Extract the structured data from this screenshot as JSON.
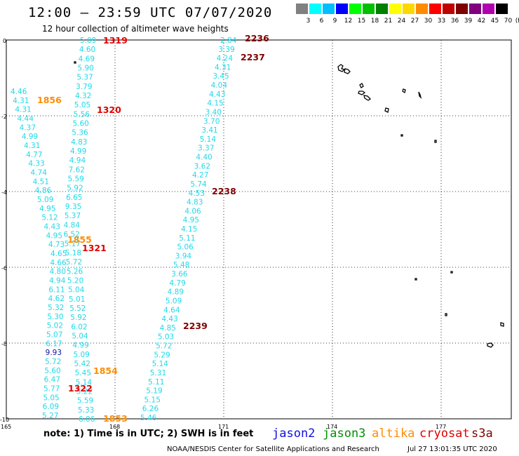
{
  "title": "12:00 – 23:59 UTC 07/07/2020",
  "subtitle": "12 hour collection of altimeter wave heights",
  "colorbar": {
    "unit": "(ft)",
    "labels": [
      "3",
      "6",
      "9",
      "12",
      "15",
      "18",
      "21",
      "24",
      "27",
      "30",
      "33",
      "36",
      "39",
      "42",
      "45",
      "70"
    ],
    "colors": [
      "#808080",
      "#00ffff",
      "#00bfff",
      "#0000ff",
      "#00ff00",
      "#00c000",
      "#008000",
      "#ffff00",
      "#ffd700",
      "#ff8c00",
      "#ff0000",
      "#c00000",
      "#800000",
      "#800080",
      "#b000b0",
      "#000000"
    ]
  },
  "axes": {
    "x_ticks": [
      "165",
      "168",
      "171",
      "174",
      "177"
    ],
    "y_ticks": [
      "0",
      "-2",
      "-4",
      "-6",
      "-8",
      "-10"
    ]
  },
  "tracks": [
    {
      "values": [
        "5.09",
        "4.60",
        "4.69",
        "5.90",
        "5.37",
        "3.79",
        "4.32",
        "5.05",
        "5.56",
        "5.60",
        "5.36",
        "4.83",
        "4.99",
        "4.94",
        "7.62",
        "5.59",
        "5.92",
        "6.65",
        "9.35",
        "5.37",
        "4.84",
        "6.52",
        "5.17",
        "5.18",
        "5.72",
        "5.26",
        "5.20",
        "5.04",
        "5.01",
        "5.52",
        "5.92",
        "6.02",
        "5.04",
        "4.99",
        "5.09",
        "5.42",
        "5.45",
        "5.14",
        "5.22",
        "5.59",
        "5.33",
        "6.06"
      ]
    },
    {
      "values": [
        "4.46",
        "4.31",
        "4.31",
        "4.44",
        "4.37",
        "4.99",
        "4.31",
        "4.77",
        "4.33",
        "4.74",
        "4.51",
        "4.86",
        "5.09",
        "4.95",
        "5.12",
        "4.43",
        "4.95",
        "4.73",
        "4.65",
        "4.66",
        "4.80",
        "4.94",
        "6.11",
        "4.62",
        "5.32",
        "5.30",
        "5.02",
        "5.07",
        "6.17",
        "9.93",
        "5.72",
        "5.60",
        "6.47",
        "5.77",
        "5.05",
        "6.09",
        "5.27"
      ]
    },
    {
      "values": [
        "2.84",
        "3.39",
        "4.24",
        "4.31",
        "3.45",
        "4.04",
        "4.43",
        "4.15",
        "3.40",
        "3.70",
        "3.41",
        "5.14",
        "3.37",
        "4.40",
        "3.62",
        "4.27",
        "5.74",
        "4.53",
        "4.83",
        "4.06",
        "4.95",
        "4.15",
        "5.11",
        "5.06",
        "3.94",
        "5.48",
        "3.66",
        "4.79",
        "4.89",
        "5.09",
        "4.64",
        "4.43",
        "4.85",
        "5.03",
        "5.72",
        "5.29",
        "5.14",
        "5.31",
        "5.11",
        "5.19",
        "5.15",
        "6.26",
        "5.46"
      ]
    }
  ],
  "time_labels": [
    {
      "text": "1319",
      "sat": "cryosat"
    },
    {
      "text": "1320",
      "sat": "cryosat"
    },
    {
      "text": "1321",
      "sat": "cryosat"
    },
    {
      "text": "1322",
      "sat": "cryosat"
    },
    {
      "text": "1856",
      "sat": "altika"
    },
    {
      "text": "1855",
      "sat": "altika"
    },
    {
      "text": "1854",
      "sat": "altika"
    },
    {
      "text": "1853",
      "sat": "altika"
    },
    {
      "text": "2236",
      "sat": "s3a"
    },
    {
      "text": "2237",
      "sat": "s3a"
    },
    {
      "text": "2238",
      "sat": "s3a"
    },
    {
      "text": "2239",
      "sat": "s3a"
    }
  ],
  "note": "note:  1) Time is in UTC;  2) SWH is in feet",
  "legend": [
    {
      "name": "jason2",
      "color": "#1010e0"
    },
    {
      "name": "jason3",
      "color": "#009000"
    },
    {
      "name": "altika",
      "color": "#ff8c00"
    },
    {
      "name": "cryosat",
      "color": "#e00000"
    },
    {
      "name": "s3a",
      "color": "#800000"
    }
  ],
  "sat_colors": {
    "cryosat": "#e00000",
    "altika": "#ff8c00",
    "s3a": "#800000",
    "value": "#22d8e8",
    "value_hi": "#1010a0"
  },
  "credit": "NOAA/NESDIS Center for Satellite Applications and Research",
  "stamp": "Jul 27 13:01:35 UTC 2020"
}
